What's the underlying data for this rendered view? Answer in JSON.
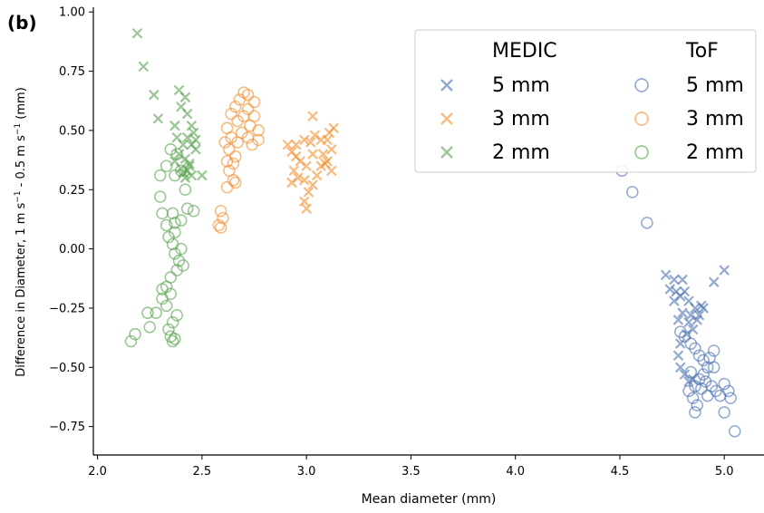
{
  "panel_label": "(b)",
  "chart_data": {
    "type": "scatter",
    "xlabel": "Mean diameter (mm)",
    "ylabel_prefix": "Difference in Diameter, 1 m s",
    "ylabel_mid": " - 0.5 m s",
    "ylabel_suffix": " (mm)",
    "ylabel_sup": "−1",
    "xlim": [
      1.98,
      5.19
    ],
    "ylim": [
      -0.87,
      1.02
    ],
    "xticks": [
      2.0,
      2.5,
      3.0,
      3.5,
      4.0,
      4.5,
      5.0
    ],
    "xtick_labels": [
      "2.0",
      "2.5",
      "3.0",
      "3.5",
      "4.0",
      "4.5",
      "5.0"
    ],
    "yticks": [
      1.0,
      0.75,
      0.5,
      0.25,
      0.0,
      -0.25,
      -0.5,
      -0.75
    ],
    "ytick_labels": [
      "1.00",
      "0.75",
      "0.50",
      "0.25",
      "0.00",
      "−0.25",
      "−0.50",
      "−0.75"
    ],
    "grid": false,
    "legend": {
      "placement": "top-right",
      "col_titles": [
        "MEDIC",
        "ToF"
      ],
      "rows": [
        "5 mm",
        "3 mm",
        "2 mm"
      ]
    },
    "colors": {
      "5 mm": "#4c72b0",
      "3 mm": "#f28e2b",
      "2 mm": "#59a14f"
    },
    "series": [
      {
        "method": "MEDIC",
        "slice": "5 mm",
        "marker": "x",
        "points": [
          [
            4.72,
            -0.11
          ],
          [
            5.0,
            -0.09
          ],
          [
            4.95,
            -0.14
          ],
          [
            4.76,
            -0.13
          ],
          [
            4.8,
            -0.13
          ],
          [
            4.74,
            -0.17
          ],
          [
            4.77,
            -0.18
          ],
          [
            4.79,
            -0.2
          ],
          [
            4.83,
            -0.22
          ],
          [
            4.86,
            -0.25
          ],
          [
            4.89,
            -0.24
          ],
          [
            4.88,
            -0.28
          ],
          [
            4.84,
            -0.28
          ],
          [
            4.8,
            -0.27
          ],
          [
            4.78,
            -0.3
          ],
          [
            4.83,
            -0.31
          ],
          [
            4.85,
            -0.34
          ],
          [
            4.82,
            -0.36
          ],
          [
            4.79,
            -0.4
          ],
          [
            4.78,
            -0.45
          ],
          [
            4.79,
            -0.5
          ],
          [
            4.81,
            -0.53
          ],
          [
            4.83,
            -0.56
          ],
          [
            4.85,
            -0.55
          ],
          [
            4.76,
            -0.22
          ],
          [
            4.81,
            -0.18
          ],
          [
            4.87,
            -0.3
          ],
          [
            4.9,
            -0.25
          ]
        ]
      },
      {
        "method": "MEDIC",
        "slice": "3 mm",
        "marker": "x",
        "points": [
          [
            3.03,
            0.56
          ],
          [
            3.13,
            0.51
          ],
          [
            3.11,
            0.49
          ],
          [
            3.1,
            0.46
          ],
          [
            3.07,
            0.46
          ],
          [
            3.04,
            0.48
          ],
          [
            3.02,
            0.45
          ],
          [
            2.99,
            0.46
          ],
          [
            2.95,
            0.44
          ],
          [
            2.91,
            0.44
          ],
          [
            2.93,
            0.41
          ],
          [
            2.95,
            0.39
          ],
          [
            3.08,
            0.4
          ],
          [
            3.12,
            0.42
          ],
          [
            3.1,
            0.37
          ],
          [
            3.07,
            0.35
          ],
          [
            3.12,
            0.33
          ],
          [
            3.03,
            0.4
          ],
          [
            3.0,
            0.35
          ],
          [
            2.97,
            0.37
          ],
          [
            2.94,
            0.33
          ],
          [
            2.96,
            0.3
          ],
          [
            2.99,
            0.29
          ],
          [
            3.03,
            0.27
          ],
          [
            3.05,
            0.31
          ],
          [
            3.01,
            0.24
          ],
          [
            2.99,
            0.2
          ],
          [
            3.0,
            0.17
          ],
          [
            2.93,
            0.28
          ],
          [
            3.09,
            0.36
          ]
        ]
      },
      {
        "method": "MEDIC",
        "slice": "2 mm",
        "marker": "x",
        "points": [
          [
            2.19,
            0.91
          ],
          [
            2.22,
            0.77
          ],
          [
            2.27,
            0.65
          ],
          [
            2.39,
            0.67
          ],
          [
            2.42,
            0.64
          ],
          [
            2.4,
            0.6
          ],
          [
            2.43,
            0.57
          ],
          [
            2.29,
            0.55
          ],
          [
            2.37,
            0.52
          ],
          [
            2.45,
            0.52
          ],
          [
            2.46,
            0.49
          ],
          [
            2.43,
            0.47
          ],
          [
            2.38,
            0.47
          ],
          [
            2.41,
            0.44
          ],
          [
            2.45,
            0.44
          ],
          [
            2.47,
            0.42
          ],
          [
            2.39,
            0.4
          ],
          [
            2.42,
            0.38
          ],
          [
            2.37,
            0.37
          ],
          [
            2.44,
            0.36
          ],
          [
            2.4,
            0.34
          ],
          [
            2.43,
            0.33
          ],
          [
            2.41,
            0.32
          ],
          [
            2.45,
            0.31
          ],
          [
            2.5,
            0.31
          ],
          [
            2.42,
            0.3
          ],
          [
            2.44,
            0.35
          ],
          [
            2.47,
            0.46
          ]
        ]
      },
      {
        "method": "ToF",
        "slice": "5 mm",
        "marker": "o",
        "points": [
          [
            4.51,
            0.33
          ],
          [
            4.56,
            0.24
          ],
          [
            4.63,
            0.11
          ],
          [
            4.79,
            -0.35
          ],
          [
            4.81,
            -0.37
          ],
          [
            4.84,
            -0.4
          ],
          [
            4.86,
            -0.42
          ],
          [
            4.88,
            -0.45
          ],
          [
            4.9,
            -0.47
          ],
          [
            4.93,
            -0.46
          ],
          [
            4.95,
            -0.43
          ],
          [
            4.92,
            -0.5
          ],
          [
            4.9,
            -0.53
          ],
          [
            4.88,
            -0.55
          ],
          [
            4.86,
            -0.58
          ],
          [
            4.83,
            -0.6
          ],
          [
            4.85,
            -0.63
          ],
          [
            4.87,
            -0.66
          ],
          [
            4.86,
            -0.69
          ],
          [
            4.91,
            -0.56
          ],
          [
            4.94,
            -0.58
          ],
          [
            4.96,
            -0.6
          ],
          [
            4.98,
            -0.62
          ],
          [
            5.0,
            -0.57
          ],
          [
            5.02,
            -0.6
          ],
          [
            5.03,
            -0.63
          ],
          [
            5.0,
            -0.69
          ],
          [
            5.05,
            -0.77
          ],
          [
            4.95,
            -0.5
          ],
          [
            4.92,
            -0.62
          ],
          [
            4.89,
            -0.59
          ],
          [
            4.84,
            -0.52
          ]
        ]
      },
      {
        "method": "ToF",
        "slice": "3 mm",
        "marker": "o",
        "points": [
          [
            2.7,
            0.66
          ],
          [
            2.72,
            0.65
          ],
          [
            2.68,
            0.63
          ],
          [
            2.75,
            0.62
          ],
          [
            2.66,
            0.6
          ],
          [
            2.72,
            0.59
          ],
          [
            2.64,
            0.57
          ],
          [
            2.7,
            0.56
          ],
          [
            2.75,
            0.56
          ],
          [
            2.67,
            0.54
          ],
          [
            2.73,
            0.52
          ],
          [
            2.62,
            0.51
          ],
          [
            2.77,
            0.5
          ],
          [
            2.69,
            0.49
          ],
          [
            2.64,
            0.47
          ],
          [
            2.72,
            0.47
          ],
          [
            2.77,
            0.46
          ],
          [
            2.61,
            0.45
          ],
          [
            2.67,
            0.45
          ],
          [
            2.74,
            0.44
          ],
          [
            2.63,
            0.42
          ],
          [
            2.66,
            0.39
          ],
          [
            2.62,
            0.37
          ],
          [
            2.65,
            0.36
          ],
          [
            2.63,
            0.33
          ],
          [
            2.65,
            0.29
          ],
          [
            2.62,
            0.26
          ],
          [
            2.66,
            0.28
          ],
          [
            2.59,
            0.16
          ],
          [
            2.6,
            0.13
          ],
          [
            2.58,
            0.1
          ],
          [
            2.59,
            0.09
          ]
        ]
      },
      {
        "method": "ToF",
        "slice": "2 mm",
        "marker": "o",
        "points": [
          [
            2.35,
            0.42
          ],
          [
            2.38,
            0.4
          ],
          [
            2.33,
            0.35
          ],
          [
            2.4,
            0.33
          ],
          [
            2.3,
            0.31
          ],
          [
            2.37,
            0.31
          ],
          [
            2.42,
            0.25
          ],
          [
            2.3,
            0.22
          ],
          [
            2.43,
            0.17
          ],
          [
            2.31,
            0.15
          ],
          [
            2.36,
            0.15
          ],
          [
            2.46,
            0.16
          ],
          [
            2.4,
            0.12
          ],
          [
            2.37,
            0.11
          ],
          [
            2.33,
            0.1
          ],
          [
            2.37,
            0.07
          ],
          [
            2.34,
            0.05
          ],
          [
            2.36,
            0.02
          ],
          [
            2.4,
            0.0
          ],
          [
            2.37,
            -0.02
          ],
          [
            2.39,
            -0.05
          ],
          [
            2.41,
            -0.07
          ],
          [
            2.38,
            -0.09
          ],
          [
            2.35,
            -0.12
          ],
          [
            2.33,
            -0.16
          ],
          [
            2.31,
            -0.17
          ],
          [
            2.35,
            -0.19
          ],
          [
            2.31,
            -0.21
          ],
          [
            2.33,
            -0.24
          ],
          [
            2.28,
            -0.27
          ],
          [
            2.24,
            -0.27
          ],
          [
            2.38,
            -0.28
          ],
          [
            2.36,
            -0.31
          ],
          [
            2.25,
            -0.33
          ],
          [
            2.34,
            -0.34
          ],
          [
            2.18,
            -0.36
          ],
          [
            2.16,
            -0.39
          ],
          [
            2.35,
            -0.37
          ],
          [
            2.36,
            -0.39
          ],
          [
            2.37,
            -0.38
          ]
        ]
      }
    ]
  }
}
